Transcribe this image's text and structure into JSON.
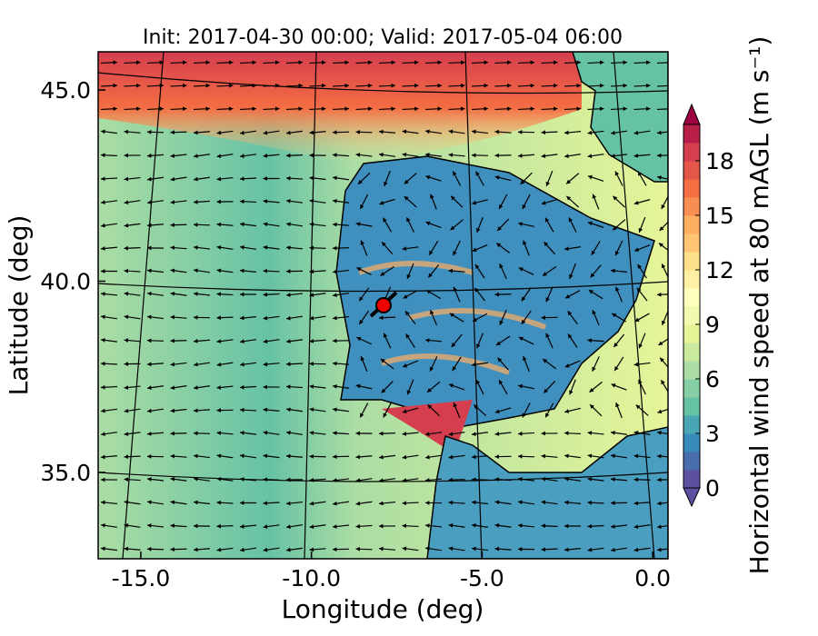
{
  "map": {
    "title": "Init: 2017-04-30 00:00; Valid: 2017-05-04 06:00",
    "xlabel": "Longitude (deg)",
    "ylabel": "Latitude (deg)",
    "xlim": [
      -16.25,
      0.45
    ],
    "ylim": [
      32.74,
      46.0
    ],
    "xticks": [
      {
        "value": -15,
        "label": "-15.0"
      },
      {
        "value": -10,
        "label": "-10.0"
      },
      {
        "value": -5,
        "label": "-5.0"
      },
      {
        "value": 0,
        "label": "0.0"
      }
    ],
    "yticks": [
      {
        "value": 35,
        "label": "35.0"
      },
      {
        "value": 40,
        "label": "40.0"
      },
      {
        "value": 45,
        "label": "45.0"
      }
    ],
    "colorbar": {
      "label": "Horizontal wind speed at 80 mAGL (m s⁻¹)",
      "lim": [
        0,
        20
      ],
      "ticks": [
        0,
        3,
        6,
        9,
        12,
        15,
        18
      ],
      "colors": [
        "#5e4fa2",
        "#4a6db0",
        "#3a8bbd",
        "#4aa5b4",
        "#66c2a5",
        "#86cfa5",
        "#abdda4",
        "#c9e99e",
        "#e6f598",
        "#f3fab0",
        "#ffffbf",
        "#fff0a4",
        "#fee08b",
        "#fdc574",
        "#fdae61",
        "#f88e52",
        "#f46d43",
        "#e4554a",
        "#d53e4f",
        "#b81f48"
      ],
      "extend_colors": [
        "#5e4fa2",
        "#9e0142"
      ]
    }
  }
}
